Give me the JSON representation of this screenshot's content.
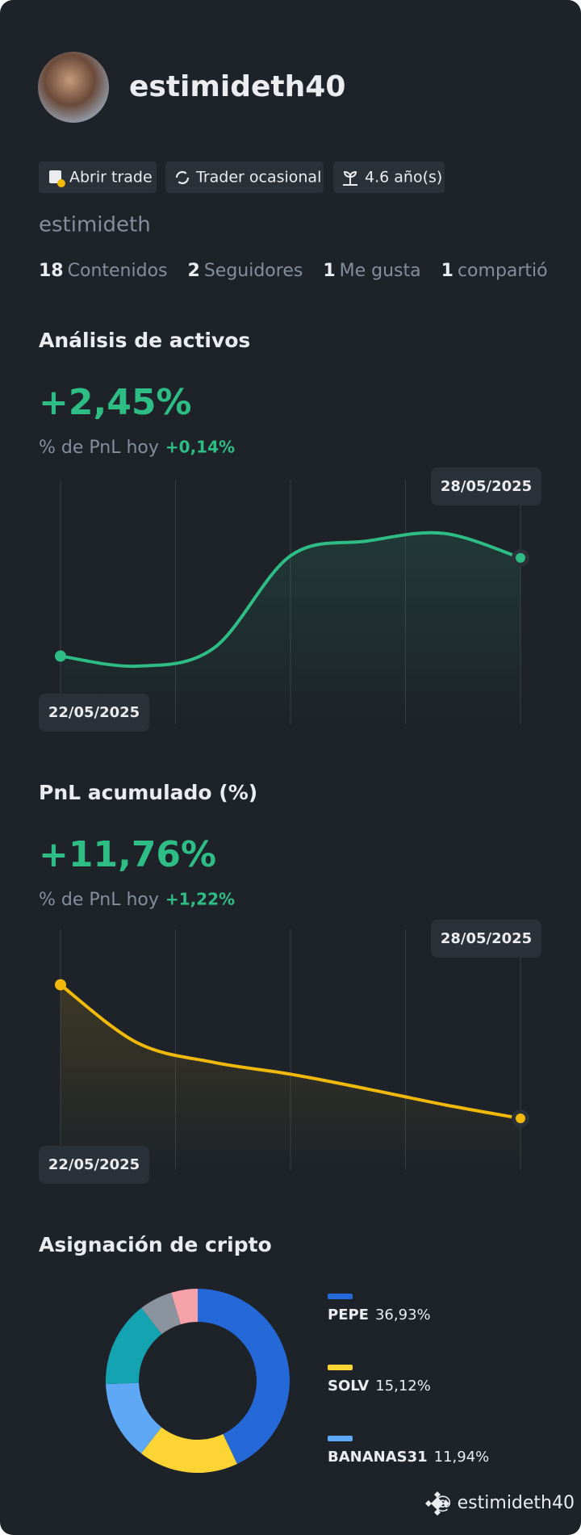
{
  "profile": {
    "username": "estimideth40",
    "handle": "estimideth",
    "badges": [
      "Abrir trade",
      "Trader ocasional",
      "4.6 año(s)"
    ],
    "stats": [
      {
        "value": 18,
        "label": "Contenidos"
      },
      {
        "value": 2,
        "label": "Seguidores"
      },
      {
        "value": 1,
        "label": "Me gusta"
      },
      {
        "value": 1,
        "label": "compartió"
      }
    ]
  },
  "chart_data": [
    {
      "type": "line",
      "title": "Análisis de activos",
      "headline": "+2,45%",
      "today_label": "% de PnL hoy",
      "today_value": "+0,14%",
      "x": [
        "22/05/2025",
        null,
        null,
        null,
        null,
        null,
        "28/05/2025"
      ],
      "series": [
        {
          "color": "#2ebd85",
          "values": [
            0,
            -0.25,
            0.2,
            2.5,
            2.87,
            3.06,
            2.45
          ]
        }
      ],
      "ylim": [
        -1.7,
        4.4
      ]
    },
    {
      "type": "line",
      "title": "PnL acumulado (%)",
      "headline": "+11,76%",
      "today_label": "% de PnL hoy",
      "today_value": "+1,22%",
      "x": [
        "22/05/2025",
        null,
        null,
        null,
        null,
        null,
        "28/05/2025"
      ],
      "series": [
        {
          "color": "#f0b90b",
          "values": [
            25.36,
            19.46,
            17.46,
            16.26,
            14.76,
            13.16,
            11.76
          ]
        }
      ],
      "ylim": [
        6.5,
        31
      ]
    },
    {
      "type": "pie",
      "title": "Asignación de cripto",
      "categories": [
        "PEPE",
        "SOLV",
        "BANANAS31",
        null,
        null,
        null
      ],
      "values": [
        36.93,
        15.12,
        11.94,
        13,
        5,
        4
      ],
      "value_labels": [
        "36,93%",
        "15,12%",
        "11,94%",
        null,
        null,
        null
      ],
      "colors": [
        "#2568d8",
        "#fcd535",
        "#5ea8f5",
        "#14a3b0",
        "#8a939e",
        "#f7a1a8"
      ]
    }
  ],
  "footer": "@ estimideth40"
}
